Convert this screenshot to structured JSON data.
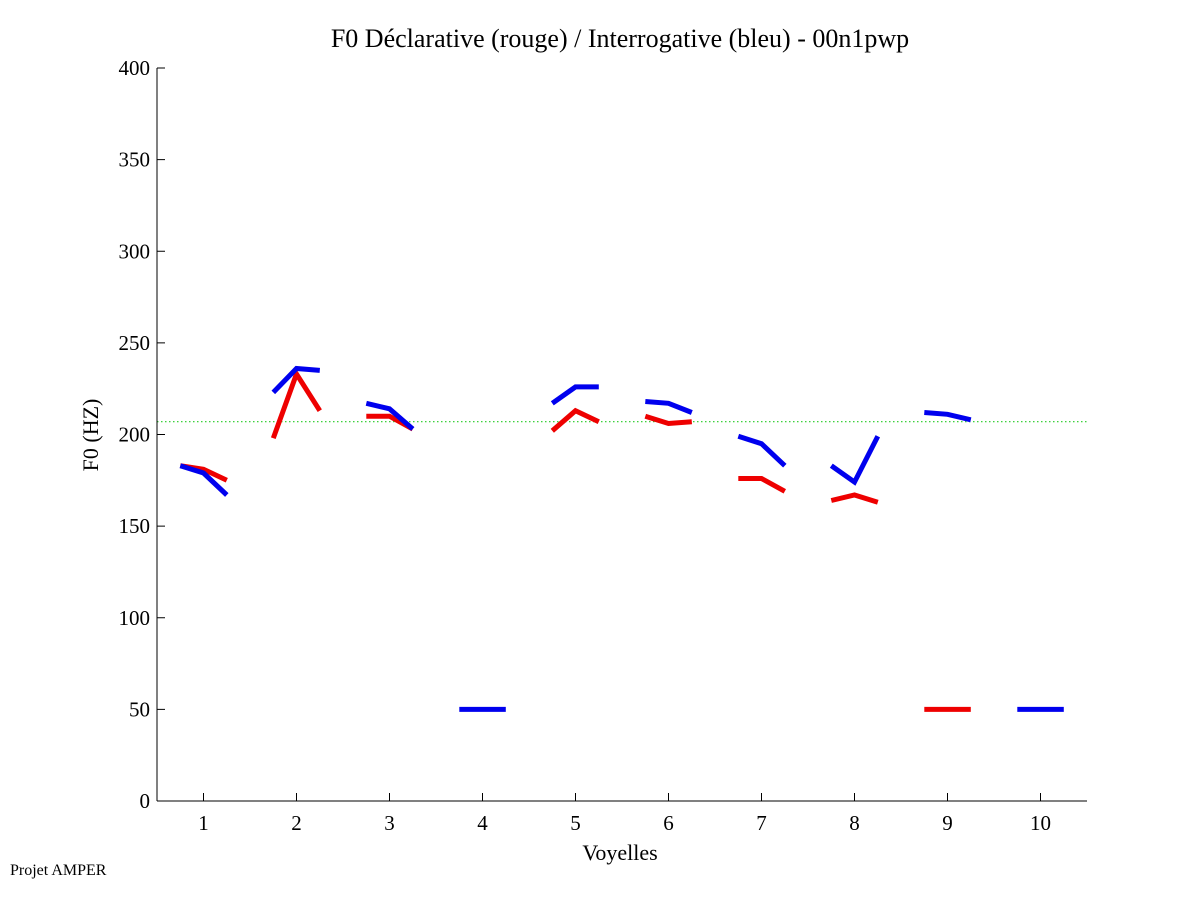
{
  "footer": "Projet AMPER",
  "chart_data": {
    "type": "line",
    "title": "F0 Déclarative (rouge) / Interrogative (bleu) - 00n1pwp",
    "xlabel": "Voyelles",
    "ylabel": "F0 (HZ)",
    "xlim": [
      0.5,
      10.5
    ],
    "ylim": [
      0,
      400
    ],
    "x_ticks": [
      1,
      2,
      3,
      4,
      5,
      6,
      7,
      8,
      9,
      10
    ],
    "y_ticks": [
      0,
      50,
      100,
      150,
      200,
      250,
      300,
      350,
      400
    ],
    "reference_line": {
      "y": 207,
      "color": "#22cc22",
      "style": "dotted"
    },
    "grid": false,
    "series": [
      {
        "color": "#ee0000",
        "segments": [
          {
            "x": [
              0.75,
              1.0,
              1.25
            ],
            "y": [
              183,
              181,
              175
            ]
          },
          {
            "x": [
              1.75,
              2.0,
              2.25
            ],
            "y": [
              198,
              233,
              213
            ]
          },
          {
            "x": [
              2.75,
              3.0,
              3.25
            ],
            "y": [
              210,
              210,
              203
            ]
          },
          {
            "x": [
              4.75,
              5.0,
              5.25
            ],
            "y": [
              202,
              213,
              207
            ]
          },
          {
            "x": [
              5.75,
              6.0,
              6.25
            ],
            "y": [
              210,
              206,
              207
            ]
          },
          {
            "x": [
              6.75,
              7.0,
              7.25
            ],
            "y": [
              176,
              176,
              169
            ]
          },
          {
            "x": [
              7.75,
              8.0,
              8.25
            ],
            "y": [
              164,
              167,
              163
            ]
          },
          {
            "x": [
              8.75,
              9.0,
              9.25
            ],
            "y": [
              50,
              50,
              50
            ]
          }
        ]
      },
      {
        "color": "#0000ee",
        "segments": [
          {
            "x": [
              0.75,
              1.0,
              1.25
            ],
            "y": [
              183,
              179,
              167
            ]
          },
          {
            "x": [
              1.75,
              2.0,
              2.25
            ],
            "y": [
              223,
              236,
              235
            ]
          },
          {
            "x": [
              2.75,
              3.0,
              3.25
            ],
            "y": [
              217,
              214,
              203
            ]
          },
          {
            "x": [
              3.75,
              4.0,
              4.25
            ],
            "y": [
              50,
              50,
              50
            ]
          },
          {
            "x": [
              4.75,
              5.0,
              5.25
            ],
            "y": [
              217,
              226,
              226
            ]
          },
          {
            "x": [
              5.75,
              6.0,
              6.25
            ],
            "y": [
              218,
              217,
              212
            ]
          },
          {
            "x": [
              6.75,
              7.0,
              7.25
            ],
            "y": [
              199,
              195,
              183
            ]
          },
          {
            "x": [
              7.75,
              8.0,
              8.25
            ],
            "y": [
              183,
              174,
              199
            ]
          },
          {
            "x": [
              8.75,
              9.0,
              9.25
            ],
            "y": [
              212,
              211,
              208
            ]
          },
          {
            "x": [
              9.75,
              10.0,
              10.25
            ],
            "y": [
              50,
              50,
              50
            ]
          }
        ]
      }
    ]
  }
}
